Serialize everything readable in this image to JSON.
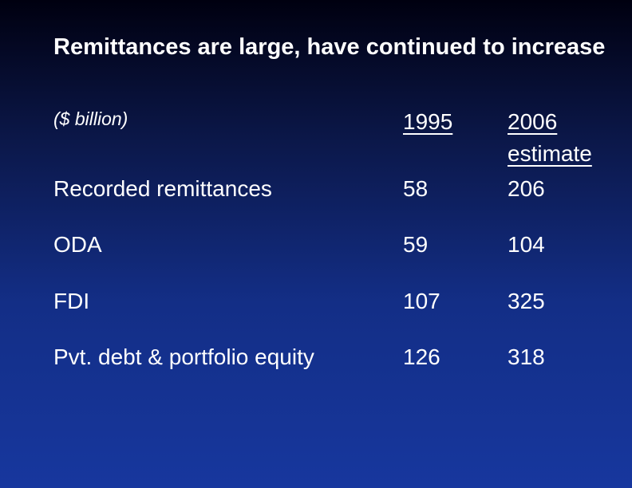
{
  "slide": {
    "title": "Remittances are large, have continued to increase",
    "unit_note": "($ billion)"
  },
  "table": {
    "columns": {
      "year_1995": "1995",
      "year_2006_line1": "2006",
      "year_2006_line2": "estimate"
    },
    "rows": [
      {
        "label": "Recorded remittances",
        "v1995": "58",
        "v2006": "206"
      },
      {
        "label": "ODA",
        "v1995": "59",
        "v2006": "104"
      },
      {
        "label": "FDI",
        "v1995": "107",
        "v2006": "325"
      },
      {
        "label": "Pvt. debt & portfolio equity",
        "v1995": "126",
        "v2006": "318"
      }
    ]
  },
  "colors": {
    "background_top": "#000010",
    "background_bottom": "#17379e",
    "text": "#ffffff"
  }
}
